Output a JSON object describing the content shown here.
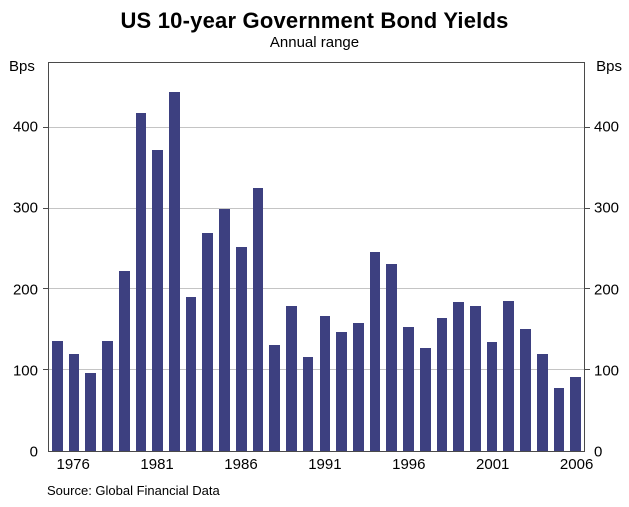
{
  "chart_data": {
    "type": "bar",
    "title": "US 10-year Government Bond Yields",
    "subtitle": "Annual range",
    "unit_label": "Bps",
    "source": "Source: Global Financial Data",
    "categories": [
      1975,
      1976,
      1977,
      1978,
      1979,
      1980,
      1981,
      1982,
      1983,
      1984,
      1985,
      1986,
      1987,
      1988,
      1989,
      1990,
      1991,
      1992,
      1993,
      1994,
      1995,
      1996,
      1997,
      1998,
      1999,
      2000,
      2001,
      2002,
      2003,
      2004,
      2005,
      2006
    ],
    "values": [
      136,
      120,
      96,
      136,
      223,
      418,
      373,
      444,
      191,
      270,
      300,
      252,
      325,
      131,
      179,
      116,
      167,
      147,
      158,
      246,
      231,
      154,
      128,
      165,
      184,
      179,
      135,
      186,
      151,
      120,
      78,
      91
    ],
    "ylim": [
      0,
      480
    ],
    "yticks": [
      0,
      100,
      200,
      300,
      400
    ],
    "xticks": [
      1976,
      1981,
      1986,
      1991,
      1996,
      2001,
      2006
    ],
    "bar_color": "#3d4080",
    "grid": "horizontal",
    "legend": "none"
  }
}
